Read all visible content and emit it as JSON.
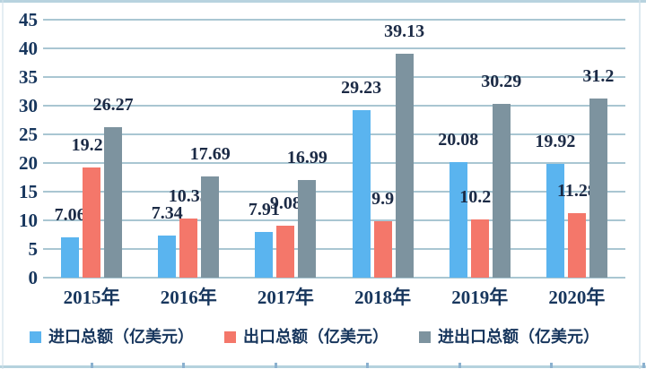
{
  "chart_data": {
    "type": "bar",
    "title": "",
    "categories": [
      "2015年",
      "2016年",
      "2017年",
      "2018年",
      "2019年",
      "2020年"
    ],
    "series": [
      {
        "name": "进口总额（亿美元）",
        "color": "#5ab4ef",
        "values": [
          7.06,
          7.34,
          7.91,
          29.23,
          20.08,
          19.92
        ],
        "labels": [
          "7.06",
          "7.34",
          "7.91",
          "29.23",
          "20.08",
          "19.92"
        ]
      },
      {
        "name": "出口总额（亿美元）",
        "color": "#f4776a",
        "values": [
          19.21,
          10.35,
          9.08,
          9.9,
          10.21,
          11.28
        ],
        "labels": [
          "19.21",
          "10.35",
          "9.08",
          "9.9",
          "10.21",
          "11.28"
        ]
      },
      {
        "name": "进出口总额（亿美元）",
        "color": "#7d939f",
        "values": [
          26.27,
          17.69,
          16.99,
          39.13,
          30.29,
          31.2
        ],
        "labels": [
          "26.27",
          "17.69",
          "16.99",
          "39.13",
          "30.29",
          "31.2"
        ]
      }
    ],
    "xlabel": "",
    "ylabel": "",
    "y_axis": {
      "min": 0,
      "max": 45,
      "step": 5
    },
    "ylim": [
      0,
      45
    ],
    "grid": true,
    "legend_position": "bottom",
    "data_labels": true
  },
  "colors": {
    "axis_text": "#17365d",
    "value_text": "#1b2a45",
    "gridline": "#a9c6d2",
    "background": "#ffffff",
    "frame_border": "#b8d3df",
    "side_border": "#cfe0ea",
    "table_edge": "#b5d2de",
    "table_tick": "#8bb1cf"
  }
}
